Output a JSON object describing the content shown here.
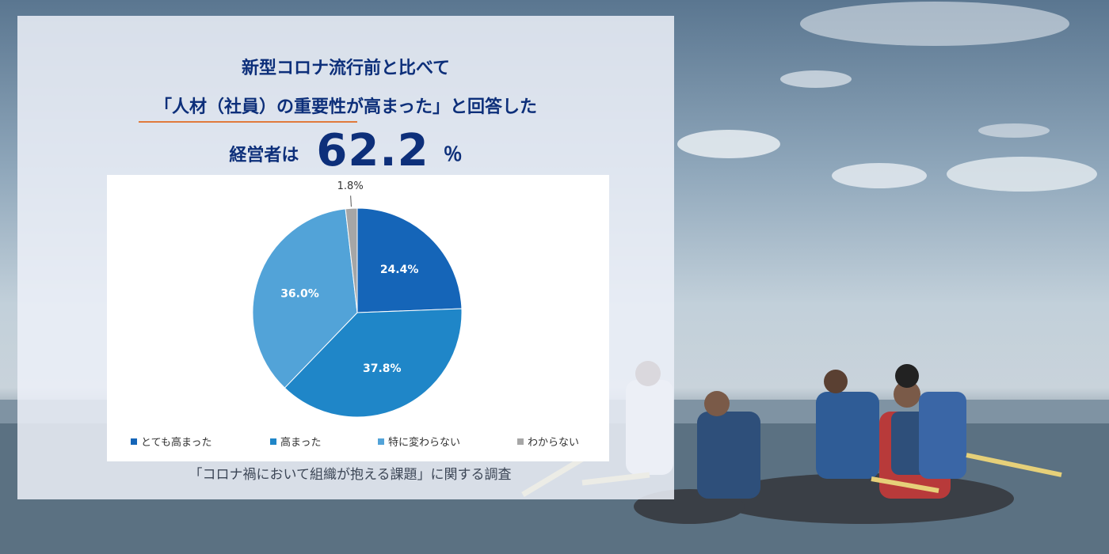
{
  "headline": {
    "line1": "新型コロナ流行前と比べて",
    "line2": "「人材（社員）の重要性が高まった」と回答した",
    "line3_prefix": "経営者は",
    "line3_value": "62.2",
    "line3_unit": "％"
  },
  "source_caption": "「コロナ禍において組織が抱える課題」に関する調査",
  "chart_data": {
    "type": "pie",
    "title": "",
    "legend_position": "bottom",
    "slices": [
      {
        "label": "とても高まった",
        "value": 24.4,
        "display": "24.4%",
        "color": "#1565b8"
      },
      {
        "label": "高まった",
        "value": 37.8,
        "display": "37.8%",
        "color": "#1f86c8"
      },
      {
        "label": "特に変わらない",
        "value": 36.0,
        "display": "36.0%",
        "color": "#52a3d8"
      },
      {
        "label": "わからない",
        "value": 1.8,
        "display": "1.8%",
        "color": "#a6a6a6"
      }
    ]
  },
  "colors": {
    "headline": "#0d2f7a",
    "underline": "#e07a3c"
  }
}
